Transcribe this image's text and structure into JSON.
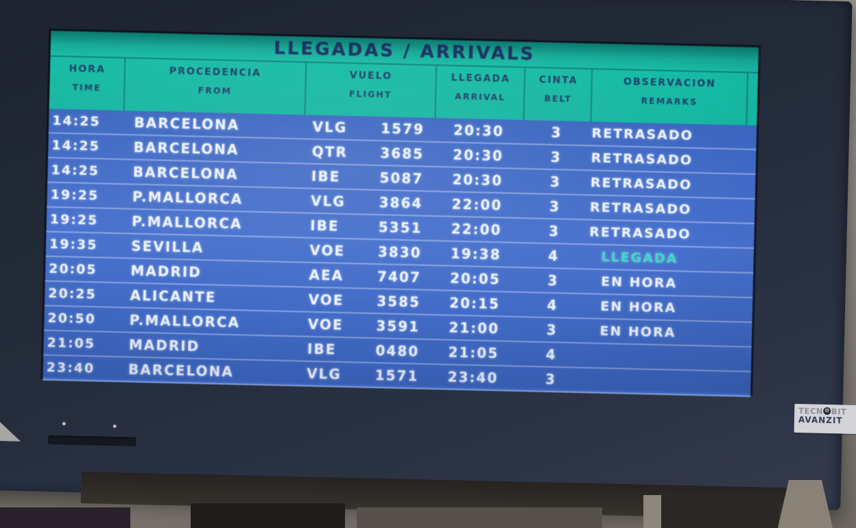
{
  "board": {
    "title": "LLEGADAS / ARRIVALS",
    "columns": [
      {
        "es": "HORA",
        "en": "TIME"
      },
      {
        "es": "PROCEDENCIA",
        "en": "FROM"
      },
      {
        "es": "VUELO",
        "en": "FLIGHT"
      },
      {
        "es": "LLEGADA",
        "en": "ARRIVAL"
      },
      {
        "es": "CINTA",
        "en": "BELT"
      },
      {
        "es": "OBSERVACION",
        "en": "REMARKS"
      }
    ],
    "rows": [
      {
        "time": "14:25",
        "from": "BARCELONA",
        "carrier": "VLG",
        "flight": "1579",
        "arrival": "20:30",
        "belt": "3",
        "remark": "RETRASADO"
      },
      {
        "time": "14:25",
        "from": "BARCELONA",
        "carrier": "QTR",
        "flight": "3685",
        "arrival": "20:30",
        "belt": "3",
        "remark": "RETRASADO"
      },
      {
        "time": "14:25",
        "from": "BARCELONA",
        "carrier": "IBE",
        "flight": "5087",
        "arrival": "20:30",
        "belt": "3",
        "remark": "RETRASADO"
      },
      {
        "time": "19:25",
        "from": "P.MALLORCA",
        "carrier": "VLG",
        "flight": "3864",
        "arrival": "22:00",
        "belt": "3",
        "remark": "RETRASADO"
      },
      {
        "time": "19:25",
        "from": "P.MALLORCA",
        "carrier": "IBE",
        "flight": "5351",
        "arrival": "22:00",
        "belt": "3",
        "remark": "RETRASADO"
      },
      {
        "time": "19:35",
        "from": "SEVILLA",
        "carrier": "VOE",
        "flight": "3830",
        "arrival": "19:38",
        "belt": "4",
        "remark": "LLEGADA",
        "remark_color": "#39dcc6"
      },
      {
        "time": "20:05",
        "from": "MADRID",
        "carrier": "AEA",
        "flight": "7407",
        "arrival": "20:05",
        "belt": "3",
        "remark": "EN HORA"
      },
      {
        "time": "20:25",
        "from": "ALICANTE",
        "carrier": "VOE",
        "flight": "3585",
        "arrival": "20:15",
        "belt": "4",
        "remark": "EN HORA"
      },
      {
        "time": "20:50",
        "from": "P.MALLORCA",
        "carrier": "VOE",
        "flight": "3591",
        "arrival": "21:00",
        "belt": "3",
        "remark": "EN HORA"
      },
      {
        "time": "21:05",
        "from": "MADRID",
        "carrier": "IBE",
        "flight": "0480",
        "arrival": "21:05",
        "belt": "4",
        "remark": ""
      },
      {
        "time": "23:40",
        "from": "BARCELONA",
        "carrier": "VLG",
        "flight": "1571",
        "arrival": "23:40",
        "belt": "3",
        "remark": ""
      }
    ]
  },
  "brand": {
    "line1_pre": "TECN",
    "line1_o": "O",
    "line1_post": "BIT",
    "line2": "AVANZIT"
  },
  "colors": {
    "header_bg": "#17bca6",
    "body_bg": "#3f6bc4",
    "header_text": "#1d3f66",
    "row_text": "#edf2ff",
    "remark_landed": "#39dcc6",
    "bezel": "#232a38"
  }
}
